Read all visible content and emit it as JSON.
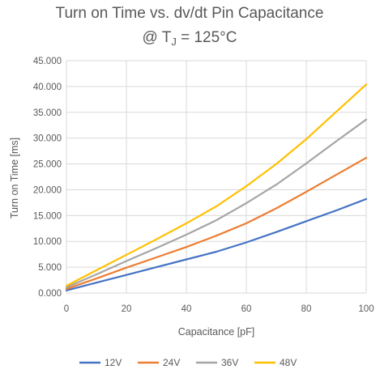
{
  "chart_data": {
    "type": "line",
    "title": "Turn on Time vs. dv/dt Pin Capacitance",
    "subtitle_prefix": "@ T",
    "subtitle_subscript": "J",
    "subtitle_suffix": " = 125°C",
    "xlabel": "Capacitance [pF]",
    "ylabel": "Turn on Time [ms]",
    "xlim": [
      0,
      100
    ],
    "ylim": [
      0,
      45
    ],
    "x_ticks": [
      "0",
      "20",
      "40",
      "60",
      "80",
      "100"
    ],
    "y_ticks": [
      "0.000",
      "5.000",
      "10.000",
      "15.000",
      "20.000",
      "25.000",
      "30.000",
      "35.000",
      "40.000",
      "45.000"
    ],
    "grid": true,
    "legend_position": "bottom",
    "x": [
      0,
      10,
      20,
      30,
      40,
      50,
      60,
      70,
      80,
      90,
      100
    ],
    "series": [
      {
        "name": "12V",
        "color": "#4472C4",
        "values": [
          0.5,
          2.0,
          3.5,
          5.0,
          6.5,
          8.0,
          9.8,
          11.8,
          13.9,
          16.0,
          18.2
        ]
      },
      {
        "name": "24V",
        "color": "#ED7D31",
        "values": [
          0.8,
          2.8,
          4.9,
          6.9,
          8.9,
          11.1,
          13.5,
          16.4,
          19.6,
          22.9,
          26.2
        ]
      },
      {
        "name": "36V",
        "color": "#A5A5A5",
        "values": [
          1.1,
          3.6,
          6.2,
          8.7,
          11.3,
          14.1,
          17.4,
          21.0,
          25.1,
          29.4,
          33.6
        ]
      },
      {
        "name": "48V",
        "color": "#FFC000",
        "values": [
          1.4,
          4.4,
          7.4,
          10.4,
          13.5,
          16.8,
          20.7,
          25.0,
          29.8,
          35.1,
          40.4
        ]
      }
    ]
  }
}
